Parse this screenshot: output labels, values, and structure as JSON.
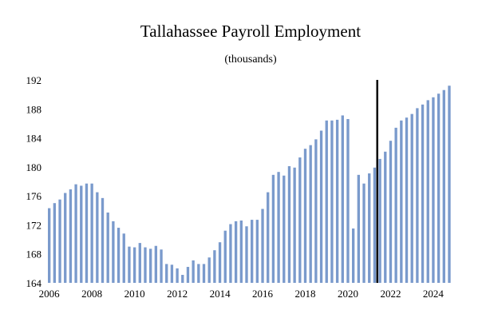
{
  "chart_data": {
    "type": "bar",
    "title": "Tallahassee Payroll Employment",
    "subtitle": "(thousands)",
    "xlabel": "",
    "ylabel": "",
    "bar_color": "#7a9acc",
    "marker_color": "#000000",
    "ylim": [
      164,
      192
    ],
    "yticks": [
      "164",
      "168",
      "172",
      "176",
      "180",
      "184",
      "188",
      "192"
    ],
    "ytick_values": [
      164,
      168,
      172,
      176,
      180,
      184,
      188,
      192
    ],
    "xticks": [
      "2006",
      "2008",
      "2010",
      "2012",
      "2014",
      "2016",
      "2018",
      "2020",
      "2022",
      "2024"
    ],
    "xtick_years": [
      2006,
      2008,
      2010,
      2012,
      2014,
      2016,
      2018,
      2020,
      2022,
      2024
    ],
    "first_period": 2006.0,
    "period_step": 0.25,
    "forecast_start": 2021.5,
    "grid": false,
    "legend": "none",
    "values": [
      174.3,
      175.0,
      175.5,
      176.4,
      176.9,
      177.6,
      177.4,
      177.7,
      177.7,
      176.5,
      175.7,
      173.7,
      172.5,
      171.6,
      170.8,
      169.0,
      168.9,
      169.5,
      168.9,
      168.7,
      169.1,
      168.6,
      166.6,
      166.5,
      166.0,
      165.1,
      166.2,
      167.1,
      166.6,
      166.6,
      167.5,
      168.5,
      169.6,
      171.2,
      172.1,
      172.5,
      172.6,
      171.8,
      172.7,
      172.7,
      174.2,
      176.5,
      178.9,
      179.3,
      178.8,
      180.1,
      179.9,
      181.3,
      182.5,
      183.0,
      183.8,
      185.0,
      186.4,
      186.4,
      186.5,
      187.1,
      186.6,
      171.5,
      178.9,
      177.7,
      179.1,
      179.9,
      181.1,
      182.1,
      183.6,
      185.4,
      186.4,
      186.8,
      187.3,
      188.1,
      188.6,
      189.2,
      189.6,
      190.1,
      190.6,
      191.2
    ]
  }
}
